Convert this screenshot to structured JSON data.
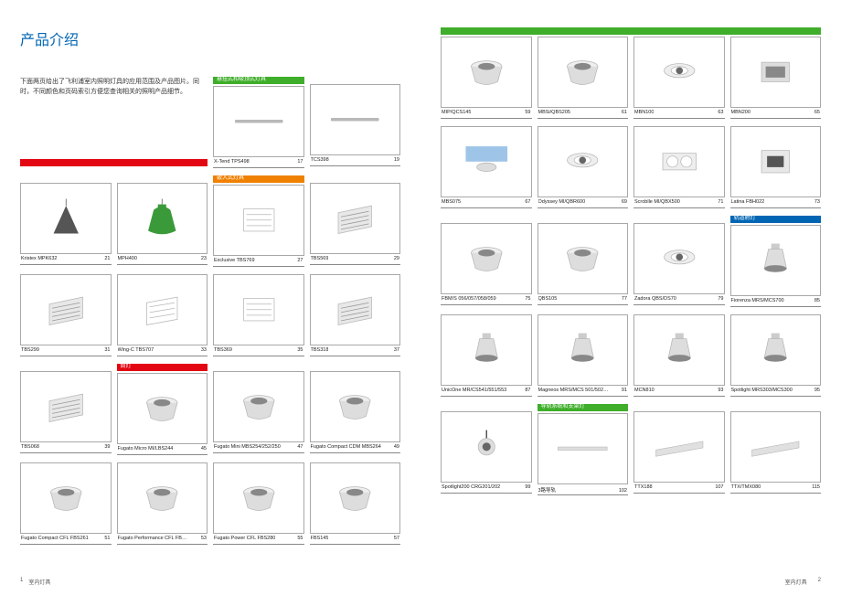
{
  "page_title": "产品介绍",
  "intro_text": "下面两页给出了飞利浦室内照明灯具的应用范围及产品图片。同时，不同颜色和页码索引方便您查询相关的照明产品细节。",
  "footer_left_page": "1",
  "footer_left_text": "室内灯具",
  "footer_right_text": "室内灯具",
  "footer_right_page": "2",
  "colors": {
    "green": "#3fae2a",
    "orange": "#f08000",
    "red": "#e30613",
    "blue": "#0066b3",
    "border": "#a8a8a8"
  },
  "sections": {
    "pendant": {
      "label": "悬挂式和吸顶式灯具",
      "color": "#3fae2a"
    },
    "recessed": {
      "label": "嵌入式灯具",
      "color": "#f08000"
    },
    "downlight": {
      "label": "筒灯",
      "color": "#e30613"
    },
    "track": {
      "label": "轨道射灯",
      "color": "#0066b3"
    },
    "trunking": {
      "label": "导轨系统和支架灯",
      "color": "#3fae2a"
    }
  },
  "left_page": {
    "red_bar_standalone": true,
    "rows": [
      [
        {
          "section": "pendant",
          "name": "X-Tend TPS498",
          "page": "17",
          "shape": "tube"
        },
        {
          "name": "TCS398",
          "page": "19",
          "shape": "tube"
        }
      ],
      [
        {
          "name": "Kristex MPK632",
          "page": "21",
          "shape": "cone_dark"
        },
        {
          "name": "MPH400",
          "page": "23",
          "shape": "highbay_green"
        },
        {
          "section": "recessed",
          "name": "Exclusive TBS769",
          "page": "27",
          "shape": "panel"
        },
        {
          "name": "TBS569",
          "page": "29",
          "shape": "louver"
        }
      ],
      [
        {
          "name": "TBS299",
          "page": "31",
          "shape": "louver"
        },
        {
          "name": "Wing-C TBS707",
          "page": "33",
          "shape": "panel_angle"
        },
        {
          "name": "TBS369",
          "page": "35",
          "shape": "panel"
        },
        {
          "name": "TBS318",
          "page": "37",
          "shape": "louver"
        }
      ],
      [
        {
          "name": "TBS068",
          "page": "39",
          "shape": "louver"
        },
        {
          "section": "downlight",
          "name": "Fugato Micro MI/LBS244",
          "page": "45",
          "shape": "downlight"
        },
        {
          "name": "Fugato Mini MBS254/252/250",
          "page": "47",
          "shape": "downlight"
        },
        {
          "name": "Fugato Compact CDM MBS264",
          "page": "49",
          "shape": "downlight"
        }
      ],
      [
        {
          "name": "Fugato Compact CFL FBS261",
          "page": "51",
          "shape": "downlight"
        },
        {
          "name": "Fugato Performance CFL FBS271",
          "page": "53",
          "shape": "downlight"
        },
        {
          "name": "Fugato Power CFL FBS280",
          "page": "55",
          "shape": "downlight"
        },
        {
          "name": "FBS145",
          "page": "57",
          "shape": "downlight"
        }
      ]
    ]
  },
  "right_page": {
    "top_bar_color": "#3fae2a",
    "rows": [
      [
        {
          "name": "MIP/QCS145",
          "page": "59",
          "shape": "downlight"
        },
        {
          "name": "MBSi/QBS205",
          "page": "61",
          "shape": "downlight"
        },
        {
          "name": "MBN100",
          "page": "63",
          "shape": "gimbal"
        },
        {
          "name": "MBN200",
          "page": "65",
          "shape": "box"
        }
      ],
      [
        {
          "name": "MBS075",
          "page": "67",
          "shape": "ceiling_blue"
        },
        {
          "name": "Odyssey MI/QBR600",
          "page": "69",
          "shape": "gimbal"
        },
        {
          "name": "Scroblle MI/QBX500",
          "page": "71",
          "shape": "twin"
        },
        {
          "name": "Latina FBH022",
          "page": "73",
          "shape": "square_recess"
        }
      ],
      [
        {
          "name": "FBM/S 056/057/058/059",
          "page": "75",
          "shape": "downlight"
        },
        {
          "name": "QBS105",
          "page": "77",
          "shape": "downlight"
        },
        {
          "name": "Zadora QBS/DS70",
          "page": "79",
          "shape": "gimbal"
        },
        {
          "section": "track",
          "name": "Fiorenza MRS/MCS700",
          "page": "85",
          "shape": "spot"
        }
      ],
      [
        {
          "name": "UnicOne MR/CS541/551/553",
          "page": "87",
          "shape": "spot"
        },
        {
          "name": "Magneos MRS/MCS 501/502/503",
          "page": "91",
          "shape": "spot"
        },
        {
          "name": "MCN810",
          "page": "93",
          "shape": "spot"
        },
        {
          "name": "Spotlight MRS303/MCS300",
          "page": "95",
          "shape": "spot"
        }
      ],
      [
        {
          "name": "Spotlight200 CRG201/202",
          "page": "99",
          "shape": "spot_small"
        },
        {
          "section": "trunking",
          "name": "3路导轨",
          "page": "102",
          "shape": "rail"
        },
        {
          "name": "TTX188",
          "page": "107",
          "shape": "batten"
        },
        {
          "name": "TTX/TMX080",
          "page": "115",
          "shape": "batten"
        }
      ]
    ]
  }
}
